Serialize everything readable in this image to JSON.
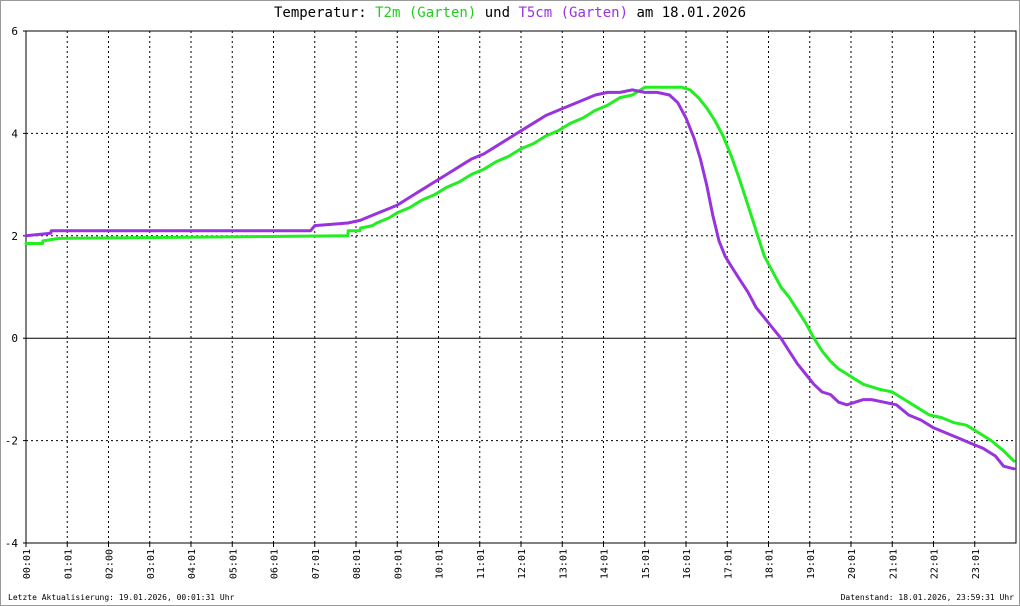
{
  "chart_data": {
    "type": "line",
    "title": {
      "prefix": "Temperatur: ",
      "series1_label": "T2m (Garten)",
      "connector": " und ",
      "series2_label": "T5cm (Garten)",
      "suffix": " am 18.01.2026"
    },
    "ylim": [
      -4,
      6
    ],
    "yticks": [
      6,
      4,
      2,
      0,
      -2,
      -4
    ],
    "grid": true,
    "x_tick_labels": [
      "00:01",
      "01:01",
      "02:00",
      "03:01",
      "04:01",
      "05:01",
      "06:01",
      "07:01",
      "08:01",
      "09:01",
      "10:01",
      "11:01",
      "12:01",
      "13:01",
      "14:01",
      "15:01",
      "16:01",
      "17:01",
      "18:01",
      "19:01",
      "20:01",
      "21:01",
      "22:01",
      "23:01"
    ],
    "x_tick_hours": [
      0,
      1,
      2,
      3,
      4,
      5,
      6,
      7,
      8,
      9,
      10,
      11,
      12,
      13,
      14,
      15,
      16,
      17,
      18,
      19,
      20,
      21,
      22,
      23
    ],
    "xlim_hours": [
      0,
      24
    ],
    "colors": {
      "t2m": "#22ee22",
      "t5cm": "#9933dd",
      "zero_line": "#000000",
      "grid": "#000000"
    },
    "series": [
      {
        "name": "T2m (Garten)",
        "x_hours": [
          0.0,
          0.4,
          0.41,
          0.8,
          7.8,
          7.81,
          8.1,
          8.11,
          8.4,
          8.5,
          8.8,
          9.0,
          9.3,
          9.6,
          9.9,
          10.2,
          10.5,
          10.8,
          11.1,
          11.4,
          11.7,
          12.0,
          12.3,
          12.6,
          12.9,
          13.2,
          13.5,
          13.8,
          14.1,
          14.4,
          14.7,
          15.0,
          15.9,
          16.1,
          16.3,
          16.5,
          16.7,
          16.9,
          17.1,
          17.3,
          17.5,
          17.7,
          17.9,
          18.1,
          18.3,
          18.5,
          18.7,
          18.9,
          19.1,
          19.3,
          19.5,
          19.7,
          19.9,
          20.1,
          20.3,
          20.5,
          20.7,
          21.0,
          21.3,
          21.6,
          21.9,
          22.2,
          22.5,
          22.8,
          23.1,
          23.4,
          23.7,
          23.95
        ],
        "values": [
          1.85,
          1.85,
          1.9,
          1.95,
          2.0,
          2.1,
          2.1,
          2.15,
          2.2,
          2.25,
          2.35,
          2.45,
          2.55,
          2.7,
          2.8,
          2.95,
          3.05,
          3.2,
          3.3,
          3.45,
          3.55,
          3.7,
          3.8,
          3.95,
          4.05,
          4.2,
          4.3,
          4.45,
          4.55,
          4.7,
          4.75,
          4.9,
          4.9,
          4.85,
          4.7,
          4.5,
          4.25,
          3.95,
          3.55,
          3.1,
          2.6,
          2.1,
          1.6,
          1.3,
          1.0,
          0.8,
          0.55,
          0.3,
          0.0,
          -0.25,
          -0.45,
          -0.6,
          -0.7,
          -0.8,
          -0.9,
          -0.95,
          -1.0,
          -1.05,
          -1.2,
          -1.35,
          -1.5,
          -1.55,
          -1.65,
          -1.7,
          -1.85,
          -2.0,
          -2.2,
          -2.4
        ]
      },
      {
        "name": "T5cm (Garten)",
        "x_hours": [
          0.0,
          0.6,
          0.61,
          2.6,
          2.61,
          6.9,
          7.0,
          7.8,
          8.1,
          8.4,
          8.7,
          9.0,
          9.3,
          9.6,
          9.9,
          10.2,
          10.5,
          10.8,
          11.1,
          11.4,
          11.7,
          12.0,
          12.3,
          12.6,
          12.9,
          13.2,
          13.5,
          13.8,
          14.1,
          14.4,
          14.7,
          15.0,
          15.3,
          15.6,
          15.8,
          16.0,
          16.2,
          16.35,
          16.5,
          16.65,
          16.8,
          16.95,
          17.1,
          17.3,
          17.5,
          17.7,
          17.9,
          18.1,
          18.3,
          18.5,
          18.7,
          18.9,
          19.1,
          19.3,
          19.5,
          19.7,
          19.9,
          20.1,
          20.3,
          20.5,
          20.8,
          21.1,
          21.4,
          21.7,
          22.0,
          22.3,
          22.6,
          22.9,
          23.2,
          23.5,
          23.7,
          23.95
        ],
        "values": [
          2.0,
          2.05,
          2.1,
          2.1,
          2.1,
          2.1,
          2.2,
          2.25,
          2.3,
          2.4,
          2.5,
          2.6,
          2.75,
          2.9,
          3.05,
          3.2,
          3.35,
          3.5,
          3.6,
          3.75,
          3.9,
          4.05,
          4.2,
          4.35,
          4.45,
          4.55,
          4.65,
          4.75,
          4.8,
          4.8,
          4.85,
          4.8,
          4.8,
          4.75,
          4.6,
          4.3,
          3.9,
          3.5,
          3.0,
          2.4,
          1.9,
          1.6,
          1.4,
          1.15,
          0.9,
          0.6,
          0.4,
          0.2,
          0.0,
          -0.25,
          -0.5,
          -0.7,
          -0.9,
          -1.05,
          -1.1,
          -1.25,
          -1.3,
          -1.25,
          -1.2,
          -1.2,
          -1.25,
          -1.3,
          -1.5,
          -1.6,
          -1.75,
          -1.85,
          -1.95,
          -2.05,
          -2.15,
          -2.3,
          -2.5,
          -2.55
        ]
      }
    ]
  },
  "footer": {
    "left": "Letzte Aktualisierung: 19.01.2026, 00:01:31 Uhr",
    "right": "Datenstand: 18.01.2026, 23:59:31 Uhr"
  }
}
